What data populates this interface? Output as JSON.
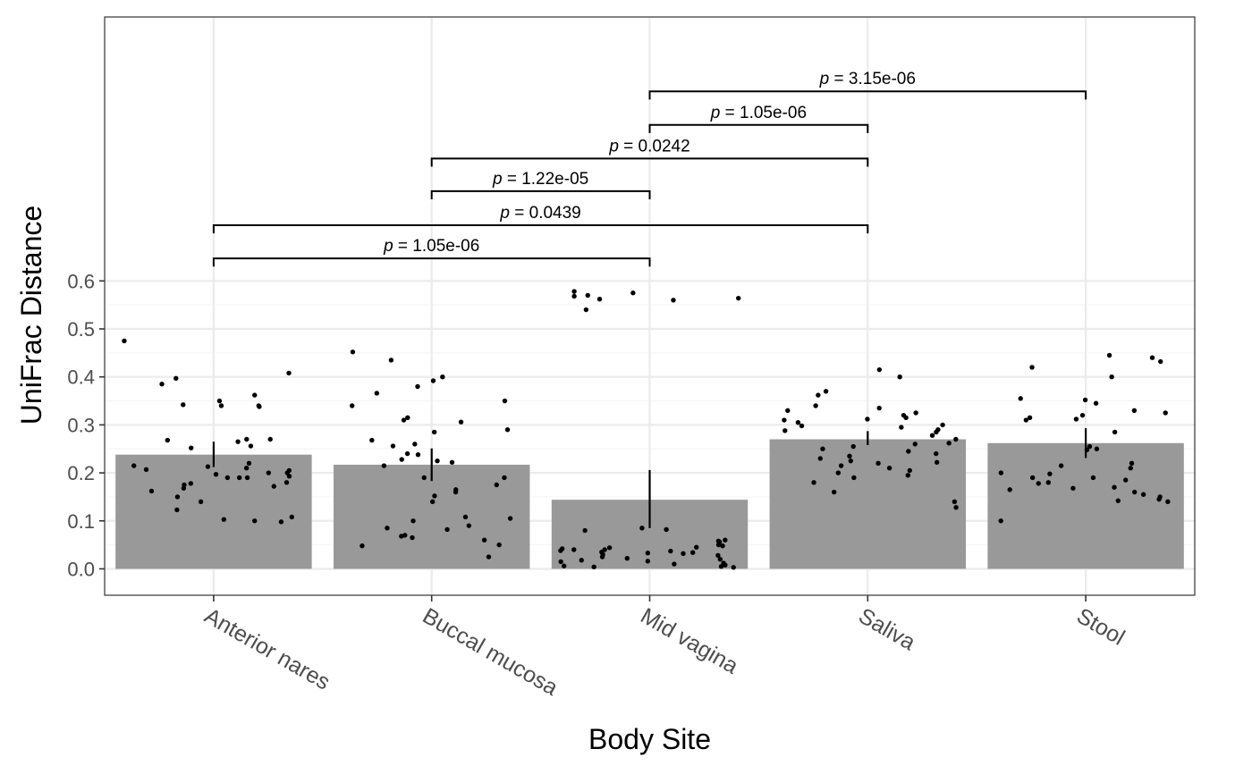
{
  "chart_data": {
    "type": "bar",
    "xlabel": "Body Site",
    "ylabel": "UniFrac Distance",
    "categories": [
      "Anterior nares",
      "Buccal mucosa",
      "Mid vagina",
      "Saliva",
      "Stool"
    ],
    "values": [
      0.238,
      0.217,
      0.144,
      0.27,
      0.262
    ],
    "error_bars": [
      {
        "low": 0.212,
        "high": 0.265
      },
      {
        "low": 0.183,
        "high": 0.251
      },
      {
        "low": 0.085,
        "high": 0.206
      },
      {
        "low": 0.258,
        "high": 0.287
      },
      {
        "low": 0.231,
        "high": 0.293
      }
    ],
    "yticks": [
      0.0,
      0.1,
      0.2,
      0.3,
      0.4,
      0.5,
      0.6
    ],
    "ytick_labels": [
      "0.0",
      "0.1",
      "0.2",
      "0.3",
      "0.4",
      "0.5",
      "0.6"
    ],
    "ylim": [
      -0.055,
      1.15
    ],
    "grid": true,
    "bar_color": "#999999",
    "points": [
      [
        0.475,
        0.408,
        0.397,
        0.385,
        0.362,
        0.35,
        0.342,
        0.34,
        0.338,
        0.34,
        0.27,
        0.265,
        0.27,
        0.268,
        0.252,
        0.256,
        0.22,
        0.215,
        0.21,
        0.213,
        0.205,
        0.2,
        0.207,
        0.197,
        0.193,
        0.19,
        0.19,
        0.19,
        0.2,
        0.18,
        0.178,
        0.175,
        0.172,
        0.168,
        0.162,
        0.15,
        0.14,
        0.123,
        0.108,
        0.103,
        0.1,
        0.098
      ],
      [
        0.452,
        0.435,
        0.4,
        0.392,
        0.38,
        0.366,
        0.35,
        0.34,
        0.315,
        0.31,
        0.306,
        0.29,
        0.285,
        0.268,
        0.26,
        0.256,
        0.24,
        0.238,
        0.228,
        0.225,
        0.222,
        0.215,
        0.19,
        0.19,
        0.175,
        0.165,
        0.16,
        0.152,
        0.14,
        0.108,
        0.105,
        0.1,
        0.09,
        0.085,
        0.082,
        0.07,
        0.068,
        0.065,
        0.06,
        0.05,
        0.048,
        0.025
      ],
      [
        0.578,
        0.575,
        0.57,
        0.568,
        0.564,
        0.562,
        0.56,
        0.54,
        0.085,
        0.082,
        0.08,
        0.06,
        0.058,
        0.056,
        0.05,
        0.048,
        0.045,
        0.044,
        0.042,
        0.04,
        0.04,
        0.038,
        0.037,
        0.035,
        0.034,
        0.033,
        0.032,
        0.03,
        0.028,
        0.025,
        0.022,
        0.02,
        0.018,
        0.016,
        0.015,
        0.012,
        0.01,
        0.008,
        0.006,
        0.005,
        0.004,
        0.003
      ],
      [
        0.415,
        0.4,
        0.37,
        0.362,
        0.34,
        0.335,
        0.33,
        0.325,
        0.32,
        0.315,
        0.312,
        0.31,
        0.305,
        0.3,
        0.298,
        0.295,
        0.29,
        0.288,
        0.285,
        0.278,
        0.27,
        0.262,
        0.26,
        0.255,
        0.25,
        0.245,
        0.24,
        0.235,
        0.23,
        0.225,
        0.222,
        0.22,
        0.215,
        0.21,
        0.205,
        0.2,
        0.195,
        0.19,
        0.18,
        0.16,
        0.14,
        0.128
      ],
      [
        0.445,
        0.44,
        0.432,
        0.42,
        0.4,
        0.355,
        0.352,
        0.345,
        0.33,
        0.325,
        0.32,
        0.315,
        0.312,
        0.31,
        0.285,
        0.255,
        0.25,
        0.248,
        0.22,
        0.215,
        0.21,
        0.2,
        0.198,
        0.19,
        0.19,
        0.185,
        0.18,
        0.178,
        0.17,
        0.168,
        0.165,
        0.16,
        0.155,
        0.15,
        0.145,
        0.142,
        0.14,
        0.1
      ]
    ],
    "comparisons": [
      {
        "from": 0,
        "to": 2,
        "y": 0.647,
        "label": "p = 1.05e-06"
      },
      {
        "from": 0,
        "to": 3,
        "y": 0.716,
        "label": "p = 0.0439"
      },
      {
        "from": 1,
        "to": 2,
        "y": 0.787,
        "label": "p = 1.22e-05"
      },
      {
        "from": 1,
        "to": 3,
        "y": 0.855,
        "label": "p = 0.0242"
      },
      {
        "from": 2,
        "to": 3,
        "y": 0.925,
        "label": "p = 1.05e-06"
      },
      {
        "from": 2,
        "to": 4,
        "y": 0.995,
        "label": "p = 3.15e-06"
      }
    ]
  }
}
